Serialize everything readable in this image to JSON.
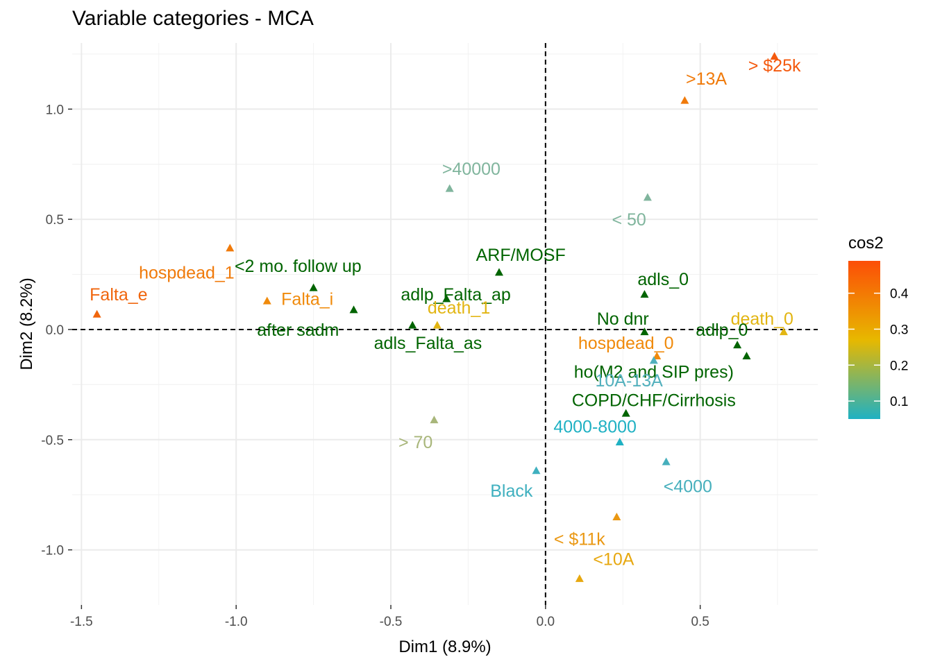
{
  "chart_data": {
    "type": "scatter",
    "title": "Variable categories - MCA",
    "xlabel": "Dim1 (8.9%)",
    "ylabel": "Dim2 (8.2%)",
    "xlim": [
      -1.53,
      0.88
    ],
    "ylim": [
      -1.25,
      1.3
    ],
    "xticks": [
      -1.5,
      -1.0,
      -0.5,
      0.0,
      0.5
    ],
    "xtick_labels": [
      "-1.5",
      "-1.0",
      "-0.5",
      "0.0",
      "0.5"
    ],
    "yticks": [
      -1.0,
      -0.5,
      0.0,
      0.5,
      1.0
    ],
    "ytick_labels": [
      "-1.0",
      "-0.5",
      "0.0",
      "0.5",
      "1.0"
    ],
    "grid": true,
    "reference_lines": {
      "x": 0,
      "y": 0,
      "style": "dashed"
    },
    "marker": "triangle",
    "legend": {
      "title": "cos2",
      "type": "colorbar",
      "position": "right",
      "range": [
        0.05,
        0.49
      ],
      "ticks": [
        0.1,
        0.2,
        0.3,
        0.4
      ],
      "tick_labels": [
        "0.1",
        "0.2",
        "0.3",
        "0.4"
      ],
      "colors": [
        "#1fb1c3",
        "#e7b800",
        "#fc4e07"
      ]
    },
    "points": [
      {
        "label": "> $25k",
        "x": 0.74,
        "y": 1.24,
        "cos2": 0.48,
        "color": "#f4590d",
        "label_dx": 0,
        "label_dy": -0.04
      },
      {
        "label": ">13A",
        "x": 0.45,
        "y": 1.04,
        "cos2": 0.42,
        "color": "#f07a0a",
        "label_dx": 0.07,
        "label_dy": 0.1
      },
      {
        "label": ">40000",
        "x": -0.31,
        "y": 0.64,
        "cos2": 0.12,
        "color": "#80b59d",
        "label_dx": 0.07,
        "label_dy": 0.09
      },
      {
        "label": "< 50",
        "x": 0.33,
        "y": 0.6,
        "cos2": 0.12,
        "color": "#80b59d",
        "label_dx": -0.06,
        "label_dy": -0.1
      },
      {
        "label": "hospdead_1",
        "x": -1.02,
        "y": 0.37,
        "cos2": 0.4,
        "color": "#f07a0a",
        "label_dx": -0.14,
        "label_dy": -0.11
      },
      {
        "label": "<2 mo. follow up",
        "x": -0.75,
        "y": 0.19,
        "cos2": 0.05,
        "color": "#006400",
        "label_dx": -0.05,
        "label_dy": 0.1
      },
      {
        "label": "Falta_e",
        "x": -1.45,
        "y": 0.07,
        "cos2": 0.44,
        "color": "#f0650c",
        "label_dx": 0.07,
        "label_dy": 0.09
      },
      {
        "label": "Falta_i",
        "x": -0.9,
        "y": 0.13,
        "cos2": 0.38,
        "color": "#f08a0b",
        "label_dx": 0.13,
        "label_dy": 0.01
      },
      {
        "label": "after sadm",
        "x": -0.62,
        "y": 0.09,
        "cos2": 0.05,
        "color": "#006400",
        "label_dx": -0.18,
        "label_dy": -0.09
      },
      {
        "label": "ARF/MOSF",
        "x": -0.15,
        "y": 0.26,
        "cos2": 0.05,
        "color": "#006400",
        "label_dx": 0.07,
        "label_dy": 0.08
      },
      {
        "label": "adlp_Falta_ap",
        "x": -0.32,
        "y": 0.14,
        "cos2": 0.05,
        "color": "#006400",
        "label_dx": 0.03,
        "label_dy": 0.02
      },
      {
        "label": "death_1",
        "x": -0.35,
        "y": 0.02,
        "cos2": 0.3,
        "color": "#e2b512",
        "label_dx": 0.07,
        "label_dy": 0.08
      },
      {
        "label": "adls_Falta_as",
        "x": -0.43,
        "y": 0.02,
        "cos2": 0.05,
        "color": "#006400",
        "label_dx": 0.05,
        "label_dy": -0.08
      },
      {
        "label": "adls_0",
        "x": 0.32,
        "y": 0.16,
        "cos2": 0.05,
        "color": "#006400",
        "label_dx": 0.06,
        "label_dy": 0.07
      },
      {
        "label": "No dnr",
        "x": 0.32,
        "y": -0.01,
        "cos2": 0.05,
        "color": "#006400",
        "label_dx": -0.07,
        "label_dy": 0.06
      },
      {
        "label": "death_0",
        "x": 0.77,
        "y": -0.01,
        "cos2": 0.3,
        "color": "#e2b512",
        "label_dx": -0.07,
        "label_dy": 0.06
      },
      {
        "label": "adlp_0",
        "x": 0.62,
        "y": -0.07,
        "cos2": 0.05,
        "color": "#006400",
        "label_dx": -0.05,
        "label_dy": 0.07
      },
      {
        "label": "hospdead_0",
        "x": 0.36,
        "y": -0.12,
        "cos2": 0.38,
        "color": "#f08a0b",
        "label_dx": -0.1,
        "label_dy": 0.06
      },
      {
        "label": "ho(M2 and SIP pres)",
        "x": 0.65,
        "y": -0.12,
        "cos2": 0.05,
        "color": "#006400",
        "label_dx": -0.3,
        "label_dy": -0.07
      },
      {
        "label": "10A-13A",
        "x": 0.35,
        "y": -0.14,
        "cos2": 0.1,
        "color": "#52b0bd",
        "label_dx": -0.08,
        "label_dy": -0.09
      },
      {
        "label": "COPD/CHF/Cirrhosis",
        "x": 0.26,
        "y": -0.38,
        "cos2": 0.05,
        "color": "#006400",
        "label_dx": 0.09,
        "label_dy": 0.06
      },
      {
        "label": "> 70",
        "x": -0.36,
        "y": -0.41,
        "cos2": 0.18,
        "color": "#a8b67a",
        "label_dx": -0.06,
        "label_dy": -0.1
      },
      {
        "label": "4000-8000",
        "x": 0.24,
        "y": -0.51,
        "cos2": 0.07,
        "color": "#1fb1c3",
        "label_dx": -0.08,
        "label_dy": 0.07
      },
      {
        "label": "Black",
        "x": -0.03,
        "y": -0.64,
        "cos2": 0.09,
        "color": "#3fb0bf",
        "label_dx": -0.08,
        "label_dy": -0.09
      },
      {
        "label": "<4000",
        "x": 0.39,
        "y": -0.6,
        "cos2": 0.1,
        "color": "#46afbc",
        "label_dx": 0.07,
        "label_dy": -0.11
      },
      {
        "label": "< $11k",
        "x": 0.23,
        "y": -0.85,
        "cos2": 0.36,
        "color": "#ea9813",
        "label_dx": -0.12,
        "label_dy": -0.1
      },
      {
        "label": "<10A",
        "x": 0.11,
        "y": -1.13,
        "cos2": 0.32,
        "color": "#e7a810",
        "label_dx": 0.11,
        "label_dy": 0.09
      }
    ]
  }
}
